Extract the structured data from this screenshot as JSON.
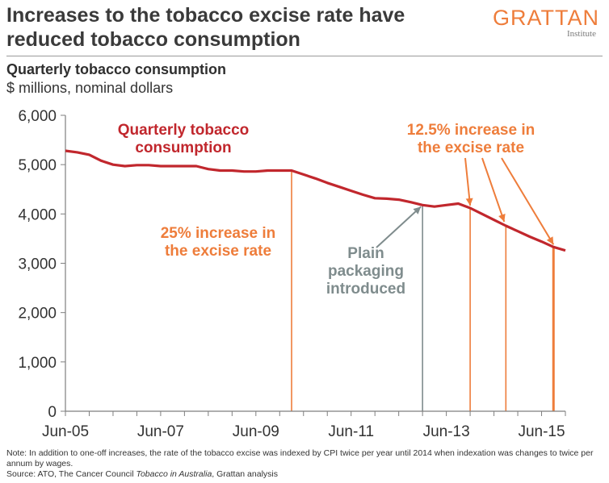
{
  "header": {
    "title": "Increases to the tobacco excise rate have reduced tobacco consumption",
    "logo_name": "GRATTAN",
    "logo_sub": "Institute"
  },
  "subtitle": "Quarterly tobacco consumption",
  "units": "$ millions, nominal dollars",
  "footer": {
    "note": "Note: In addition to one-off increases, the rate of the tobacco excise was indexed by CPI twice per year until 2014 when indexation was changes to twice per annum by wages.",
    "source_prefix": "Source: ATO, The Cancer Council ",
    "source_italic": "Tobacco in Australia",
    "source_suffix": ", Grattan analysis"
  },
  "colors": {
    "series": "#c1272d",
    "annotation": "#ee7d3b",
    "plain_packaging": "#7f8c8d",
    "axis": "#7f7f7f"
  },
  "chart_data": {
    "type": "line",
    "title": "Quarterly tobacco consumption",
    "ylabel": "$ millions, nominal dollars",
    "ylim": [
      0,
      6000
    ],
    "yticks": [
      0,
      1000,
      2000,
      3000,
      4000,
      5000,
      6000
    ],
    "ytick_labels": [
      "0",
      "1,000",
      "2,000",
      "3,000",
      "4,000",
      "5,000",
      "6,000"
    ],
    "xlim": [
      "Jun-05",
      "Dec-15"
    ],
    "xticks": [
      "Jun-05",
      "Jun-07",
      "Jun-09",
      "Jun-11",
      "Jun-13",
      "Jun-15"
    ],
    "grid": false,
    "series": [
      {
        "name": "Quarterly tobacco consumption",
        "x": [
          "Jun-05",
          "Sep-05",
          "Dec-05",
          "Mar-06",
          "Jun-06",
          "Sep-06",
          "Dec-06",
          "Mar-07",
          "Jun-07",
          "Sep-07",
          "Dec-07",
          "Mar-08",
          "Jun-08",
          "Sep-08",
          "Dec-08",
          "Mar-09",
          "Jun-09",
          "Sep-09",
          "Dec-09",
          "Mar-10",
          "Jun-10",
          "Sep-10",
          "Dec-10",
          "Mar-11",
          "Jun-11",
          "Sep-11",
          "Dec-11",
          "Mar-12",
          "Jun-12",
          "Sep-12",
          "Dec-12",
          "Mar-13",
          "Jun-13",
          "Sep-13",
          "Dec-13",
          "Mar-14",
          "Jun-14",
          "Sep-14",
          "Dec-14",
          "Mar-15",
          "Jun-15",
          "Sep-15",
          "Dec-15"
        ],
        "values": [
          5280,
          5250,
          5200,
          5080,
          5000,
          4970,
          4990,
          4990,
          4970,
          4970,
          4970,
          4970,
          4910,
          4880,
          4880,
          4860,
          4860,
          4880,
          4880,
          4880,
          4800,
          4720,
          4630,
          4550,
          4470,
          4390,
          4320,
          4310,
          4290,
          4240,
          4180,
          4150,
          4180,
          4210,
          4120,
          4000,
          3880,
          3760,
          3650,
          3540,
          3440,
          3330,
          3260
        ]
      }
    ],
    "event_lines": [
      {
        "x": "Mar-10",
        "name": "25% increase in the excise rate",
        "color": "#ee7d3b"
      },
      {
        "x": "Dec-12",
        "name": "Plain packaging introduced",
        "color": "#7f8c8d"
      },
      {
        "x": "Dec-13",
        "name": "12.5% increase in the excise rate",
        "color": "#ee7d3b"
      },
      {
        "x": "Sep-14",
        "name": "12.5% increase in the excise rate",
        "color": "#ee7d3b"
      },
      {
        "x": "Sep-15",
        "name": "12.5% increase in the excise rate",
        "color": "#ee7d3b"
      }
    ],
    "annotations": [
      {
        "lines": [
          "Quarterly tobacco",
          "consumption"
        ],
        "color": "#c1272d"
      },
      {
        "lines": [
          "25% increase in",
          "the excise rate"
        ],
        "color": "#ee7d3b"
      },
      {
        "lines": [
          "Plain",
          "packaging",
          "introduced"
        ],
        "color": "#7f8c8d"
      },
      {
        "lines": [
          "12.5% increase in",
          "the excise rate"
        ],
        "color": "#ee7d3b"
      }
    ]
  }
}
